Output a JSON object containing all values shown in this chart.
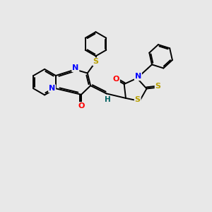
{
  "bg_color": "#e8e8e8",
  "bond_color": "#000000",
  "atom_colors": {
    "N": "#0000ff",
    "O": "#ff0000",
    "S": "#b8a000",
    "H": "#006060",
    "C": "#000000"
  },
  "lw": 1.4,
  "dbo": 0.07
}
